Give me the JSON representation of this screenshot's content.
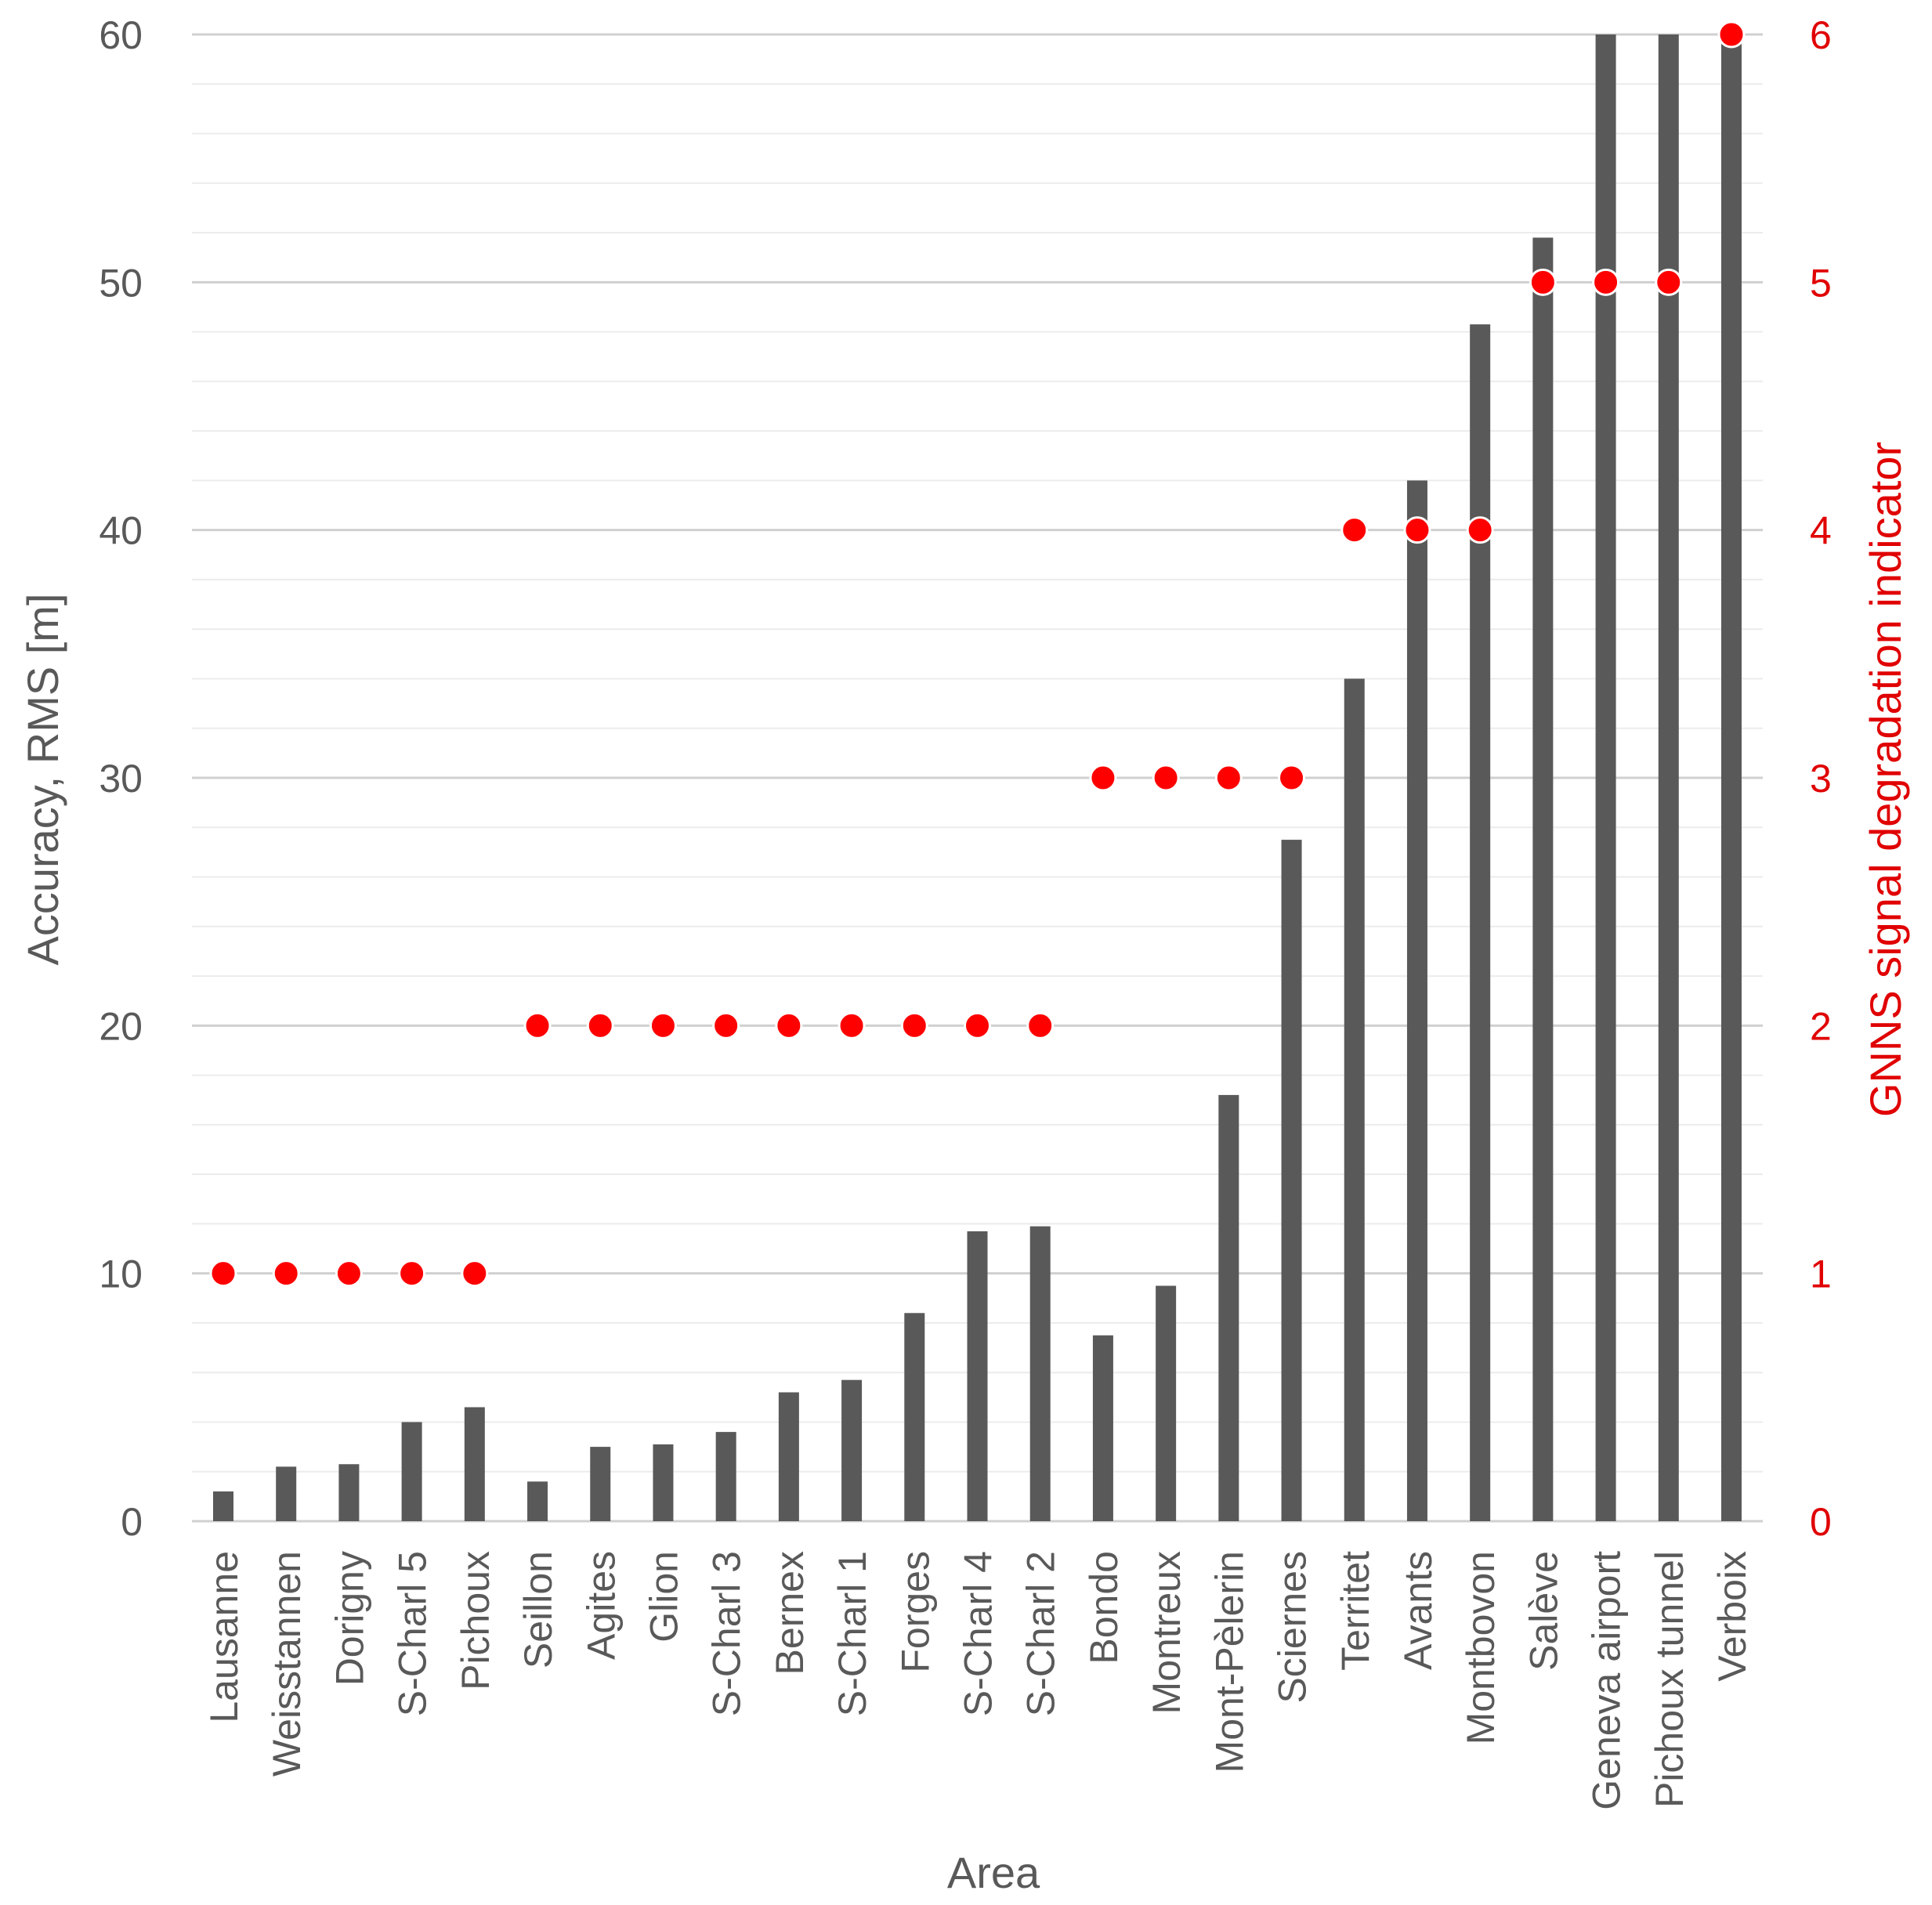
{
  "chart_data": {
    "type": "bar",
    "title": "",
    "xlabel": "Area",
    "ylabel": "Accuracy, RMS [m]",
    "y2label": "GNNS signal degradation indicator",
    "ylim": [
      0,
      60
    ],
    "y2lim": [
      0,
      6
    ],
    "yticks": [
      "0",
      "10",
      "20",
      "30",
      "40",
      "50",
      "60"
    ],
    "y2ticks": [
      "0",
      "1",
      "2",
      "3",
      "4",
      "5",
      "6"
    ],
    "grid": true,
    "categories": [
      "Lausanne",
      "Weisstannen",
      "Dorigny",
      "S-Charl 5",
      "Pichoux",
      "Seillon",
      "Agites",
      "Glion",
      "S-Charl 3",
      "Bernex",
      "S-Charl 1",
      "Forges",
      "S-Charl 4",
      "S-Charl 2",
      "Bondo",
      "Montreux",
      "Mont-Pèlerin",
      "Sciernes",
      "Territet",
      "Avants",
      "Montbovon",
      "Salève",
      "Geneva airport",
      "Pichoux tunnel",
      "Verboix"
    ],
    "series": [
      {
        "name": "Accuracy, RMS [m]",
        "kind": "bar",
        "axis": "left",
        "color": "#595959",
        "values": [
          1.2,
          2.2,
          2.3,
          4.0,
          4.6,
          1.6,
          3.0,
          3.1,
          3.6,
          5.2,
          5.7,
          8.4,
          11.7,
          11.9,
          7.5,
          9.5,
          17.2,
          27.5,
          34.0,
          42.0,
          48.3,
          51.8,
          60,
          60,
          60
        ]
      },
      {
        "name": "GNNS signal degradation indicator",
        "kind": "scatter",
        "axis": "right",
        "color": "#ff0000",
        "values": [
          1,
          1,
          1,
          1,
          1,
          2,
          2,
          2,
          2,
          2,
          2,
          2,
          2,
          2,
          3,
          3,
          3,
          3,
          4,
          4,
          4,
          5,
          5,
          5,
          6
        ]
      }
    ]
  }
}
